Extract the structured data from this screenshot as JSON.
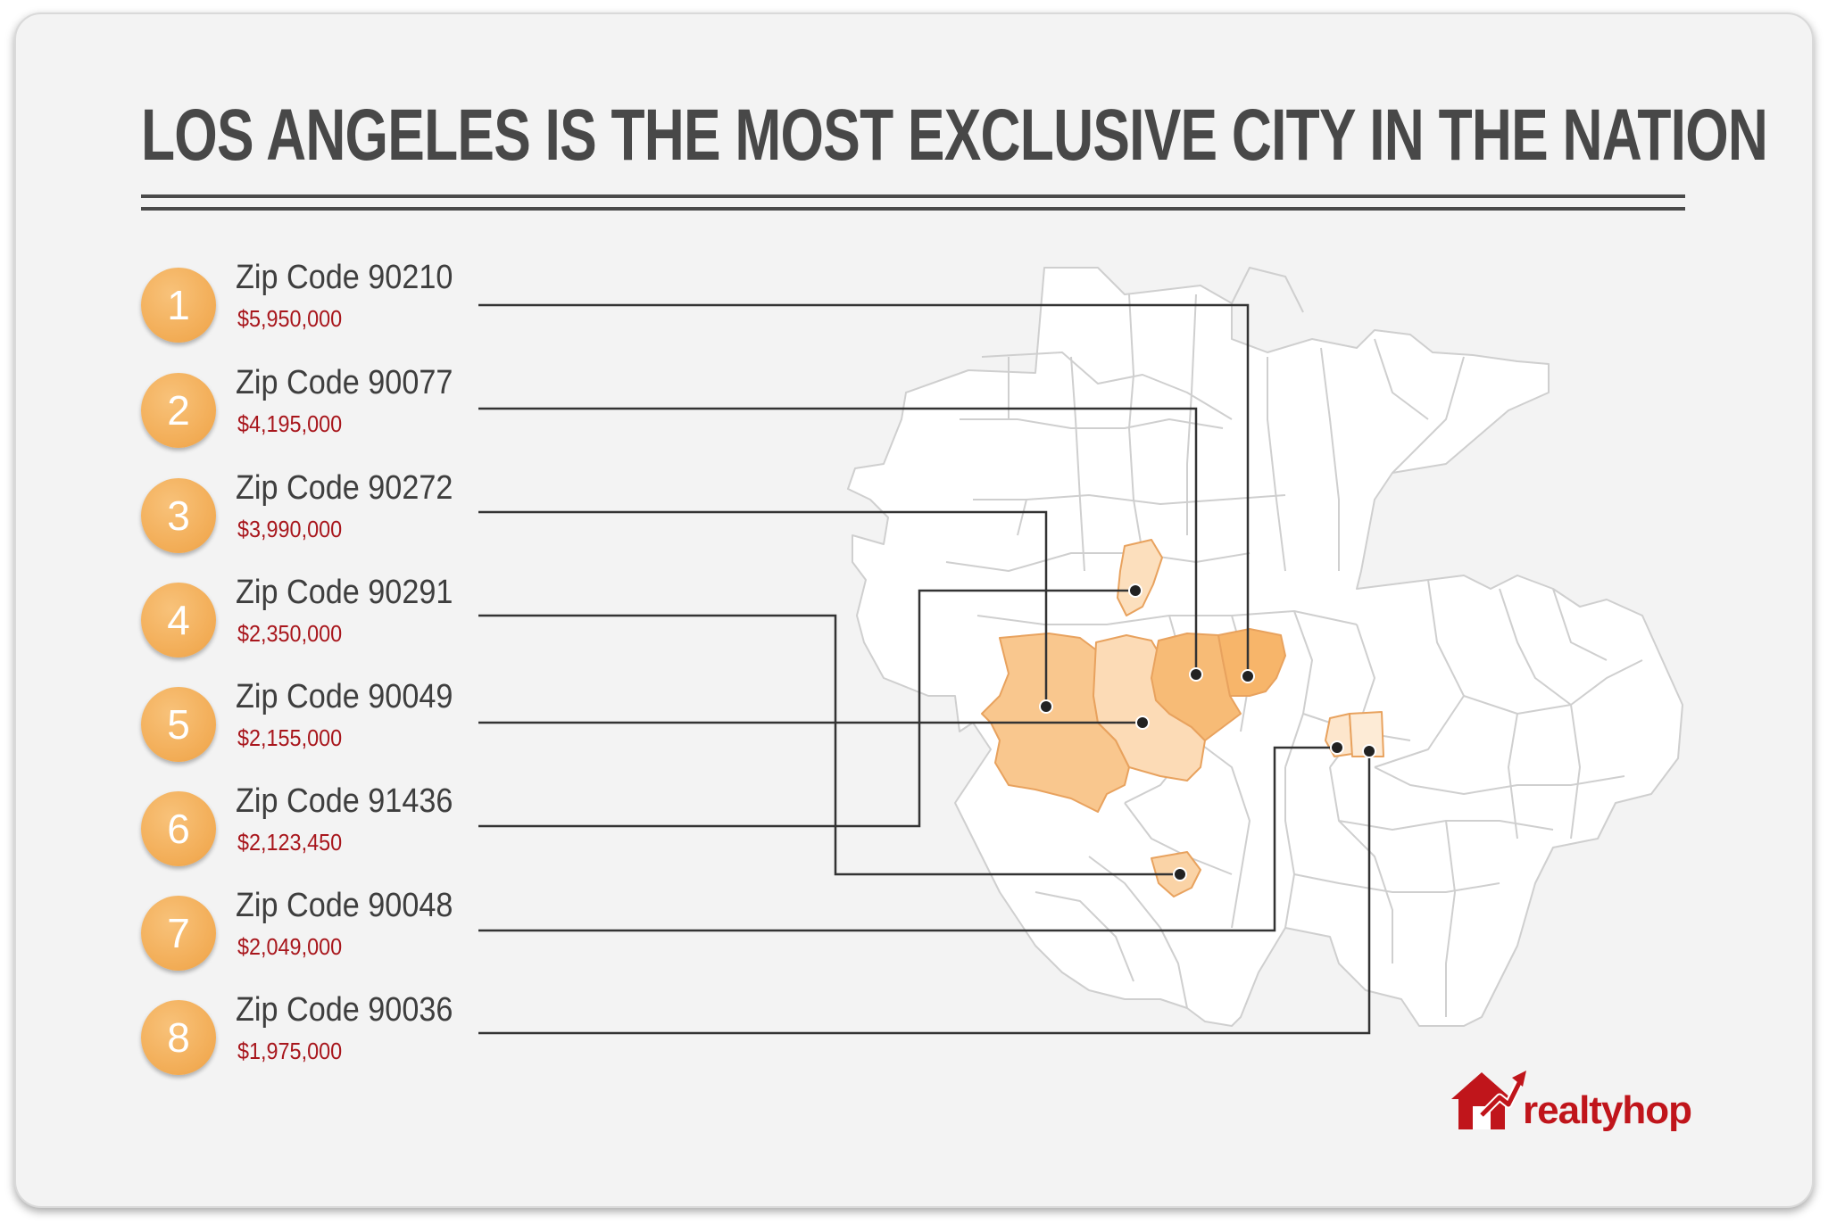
{
  "title": "LOS ANGELES IS THE MOST EXCLUSIVE CITY IN THE NATION",
  "rankings": [
    {
      "rank": "1",
      "label": "Zip Code 90210",
      "price": "$5,950,000",
      "color": "#f7b56a"
    },
    {
      "rank": "2",
      "label": "Zip Code 90077",
      "price": "$4,195,000",
      "color": "#f7bb76"
    },
    {
      "rank": "3",
      "label": "Zip Code 90272",
      "price": "$3,990,000",
      "color": "#f9c78e"
    },
    {
      "rank": "4",
      "label": "Zip Code 90291",
      "price": "$2,350,000",
      "color": "#fad3a6"
    },
    {
      "rank": "5",
      "label": "Zip Code 90049",
      "price": "$2,155,000",
      "color": "#fcdbb6"
    },
    {
      "rank": "6",
      "label": "Zip Code 91436",
      "price": "$2,123,450",
      "color": "#fcdfbd"
    },
    {
      "rank": "7",
      "label": "Zip Code 90048",
      "price": "$2,049,000",
      "color": "#fde6cc"
    },
    {
      "rank": "8",
      "label": "Zip Code 90036",
      "price": "$1,975,000",
      "color": "#fdebd6"
    }
  ],
  "colors": {
    "badge": "#f2ac55",
    "price_text": "#a8161c",
    "title_text": "#484848",
    "map_fill": "#ffffff",
    "map_border": "#cfcfcf",
    "leader_line": "#333333",
    "brand": "#c0151b"
  },
  "logo": {
    "text": "realtyhop"
  }
}
